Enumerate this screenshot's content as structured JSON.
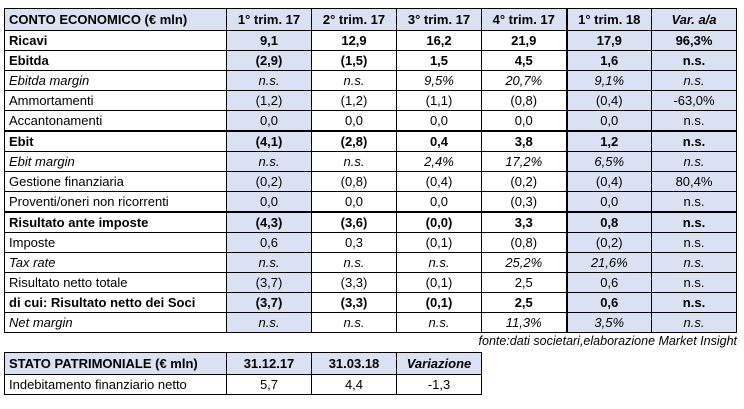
{
  "colors": {
    "header_fill": "#d9e1f2",
    "border": "#000000",
    "text": "#000000",
    "page_background": "#ffffff"
  },
  "income_statement": {
    "title": "CONTO ECONOMICO (€ mln)",
    "columns": [
      "1° trim. 17",
      "2° trim. 17",
      "3° trim. 17",
      "4° trim. 17",
      "1° trim. 18",
      "Var. a/a"
    ],
    "shaded_column_indexes": [
      0,
      4,
      5
    ],
    "italic_header_indexes": [
      5
    ],
    "divider_before_column_index": 4,
    "rows": [
      {
        "label": "Ricavi",
        "style": "bold",
        "separator_above": false,
        "values": [
          "9,1",
          "12,9",
          "16,2",
          "21,9",
          "17,9",
          "96,3%"
        ]
      },
      {
        "label": "Ebitda",
        "style": "bold",
        "separator_above": false,
        "values": [
          "(2,9)",
          "(1,5)",
          "1,5",
          "4,5",
          "1,6",
          "n.s."
        ]
      },
      {
        "label": "Ebitda margin",
        "style": "italic",
        "separator_above": false,
        "values": [
          "n.s.",
          "n.s.",
          "9,5%",
          "20,7%",
          "9,1%",
          "n.s."
        ]
      },
      {
        "label": "Ammortamenti",
        "style": "normal",
        "separator_above": false,
        "values": [
          "(1,2)",
          "(1,2)",
          "(1,1)",
          "(0,8)",
          "(0,4)",
          "-63,0%"
        ]
      },
      {
        "label": "Accantonamenti",
        "style": "normal",
        "separator_above": false,
        "values": [
          "0,0",
          "0,0",
          "0,0",
          "0,0",
          "0,0",
          "n.s."
        ]
      },
      {
        "label": "Ebit",
        "style": "bold",
        "separator_above": true,
        "values": [
          "(4,1)",
          "(2,8)",
          "0,4",
          "3,8",
          "1,2",
          "n.s."
        ]
      },
      {
        "label": "Ebit margin",
        "style": "italic",
        "separator_above": false,
        "values": [
          "n.s.",
          "n.s.",
          "2,4%",
          "17,2%",
          "6,5%",
          "n.s."
        ]
      },
      {
        "label": "Gestione finanziaria",
        "style": "normal",
        "separator_above": false,
        "values": [
          "(0,2)",
          "(0,8)",
          "(0,4)",
          "(0,2)",
          "(0,4)",
          "80,4%"
        ]
      },
      {
        "label": "Proventi/oneri non ricorrenti",
        "style": "normal",
        "separator_above": false,
        "values": [
          "0,0",
          "0,0",
          "0,0",
          "(0,3)",
          "0,0",
          "n.s."
        ]
      },
      {
        "label": "Risultato ante imposte",
        "style": "bold",
        "separator_above": true,
        "values": [
          "(4,3)",
          "(3,6)",
          "(0,0)",
          "3,3",
          "0,8",
          "n.s."
        ]
      },
      {
        "label": "Imposte",
        "style": "normal",
        "separator_above": false,
        "values": [
          "0,6",
          "0,3",
          "(0,1)",
          "(0,8)",
          "(0,2)",
          "n.s."
        ]
      },
      {
        "label": "Tax rate",
        "style": "italic",
        "separator_above": false,
        "values": [
          "n.s.",
          "n.s.",
          "n.s.",
          "25,2%",
          "21,6%",
          "n.s."
        ]
      },
      {
        "label": "Risultato netto totale",
        "style": "normal",
        "separator_above": false,
        "values": [
          "(3,7)",
          "(3,3)",
          "(0,1)",
          "2,5",
          "0,6",
          "n.s."
        ]
      },
      {
        "label": "di cui: Risultato netto dei Soci",
        "style": "bold",
        "separator_above": false,
        "values": [
          "(3,7)",
          "(3,3)",
          "(0,1)",
          "2,5",
          "0,6",
          "n.s."
        ]
      },
      {
        "label": "Net margin",
        "style": "italic",
        "separator_above": false,
        "values": [
          "n.s.",
          "n.s.",
          "n.s.",
          "11,3%",
          "3,5%",
          "n.s."
        ]
      }
    ]
  },
  "source_note": "fonte:dati societari,elaborazione Market Insight",
  "balance_sheet": {
    "title": "STATO PATRIMONIALE (€ mln)",
    "columns": [
      "31.12.17",
      "31.03.18",
      "Variazione"
    ],
    "shaded_column_indexes": [],
    "italic_header_indexes": [
      2
    ],
    "divider_before_column_index": null,
    "rows": [
      {
        "label": "Indebitamento finanziario netto",
        "style": "normal",
        "separator_above": false,
        "values": [
          "5,7",
          "4,4",
          "-1,3"
        ]
      }
    ]
  },
  "layout": {
    "label_column_width": 222,
    "data_column_width": 85
  }
}
